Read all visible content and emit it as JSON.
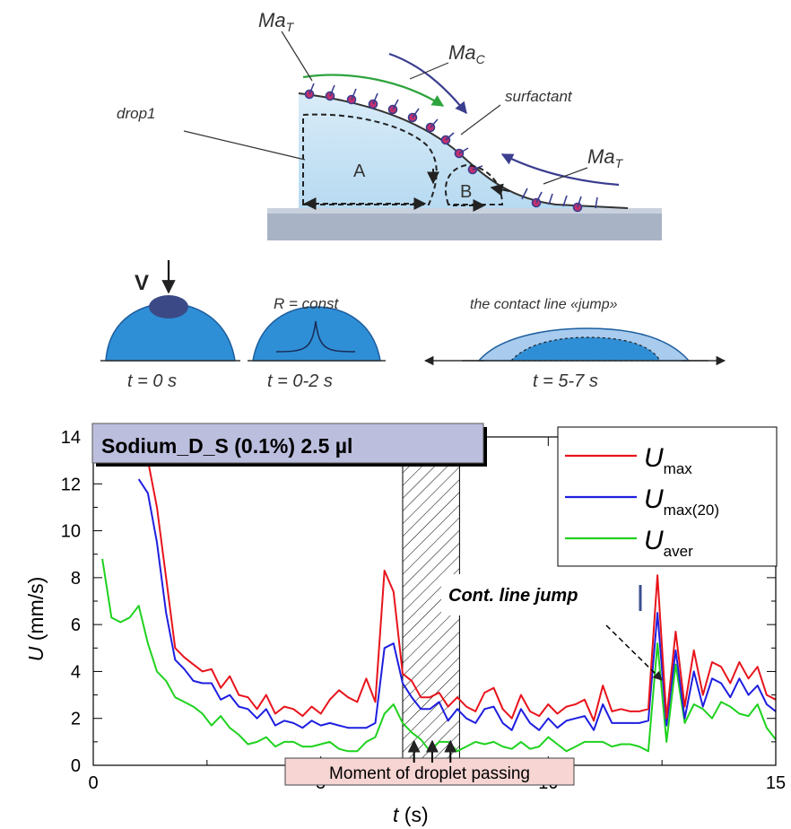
{
  "diagram": {
    "labels": {
      "ma_t_top": "Ma",
      "ma_t_top_sub": "T",
      "ma_c": "Ma",
      "ma_c_sub": "C",
      "ma_t_right": "Ma",
      "ma_t_right_sub": "T",
      "surfactant": "surfactant",
      "drop1": "drop1",
      "region_a": "A",
      "region_b": "B"
    },
    "stages": {
      "v_label": "V",
      "r_const": "R = const",
      "jump_title": "the contact line «jump»",
      "t0": "t = 0 s",
      "t02": "t = 0-2 s",
      "t57": "t = 5-7 s"
    }
  },
  "chart_data": {
    "type": "line",
    "title": "Sodium_D_S (0.1%) 2.5 µl",
    "xlabel": "t (s)",
    "ylabel": "U (mm/s)",
    "xlim": [
      0,
      15
    ],
    "ylim": [
      0,
      14
    ],
    "xticks": [
      0,
      5,
      10,
      15
    ],
    "yticks": [
      0,
      2,
      4,
      6,
      8,
      10,
      12,
      14
    ],
    "legend_position": "top-right",
    "annotations": {
      "jump": "Cont. line  jump",
      "passing": "Moment of droplet passing"
    },
    "hatched_interval": [
      6.8,
      8.05
    ],
    "series": [
      {
        "name": "U_max",
        "legend_main": "U",
        "legend_sub": "max",
        "color": "#e8141c",
        "x": [
          1.0,
          1.2,
          1.4,
          1.6,
          1.8,
          2.0,
          2.2,
          2.4,
          2.6,
          2.8,
          3.0,
          3.2,
          3.4,
          3.6,
          3.8,
          4.0,
          4.2,
          4.4,
          4.6,
          4.8,
          5.0,
          5.2,
          5.4,
          5.6,
          5.8,
          6.0,
          6.2,
          6.4,
          6.6,
          6.8,
          7.0,
          7.2,
          7.4,
          7.6,
          7.8,
          8.0,
          8.2,
          8.4,
          8.6,
          8.8,
          9.0,
          9.2,
          9.4,
          9.6,
          9.8,
          10.0,
          10.2,
          10.4,
          10.6,
          10.8,
          11.0,
          11.2,
          11.4,
          11.6,
          11.8,
          12.0,
          12.2,
          12.4,
          12.6,
          12.8,
          13.0,
          13.2,
          13.4,
          13.6,
          13.8,
          14.0,
          14.2,
          14.4,
          14.6,
          14.8,
          15.0
        ],
        "y": [
          14.5,
          13.0,
          11.0,
          8.0,
          5.0,
          4.6,
          4.3,
          4.0,
          4.1,
          3.3,
          3.8,
          3.0,
          2.9,
          2.4,
          3.0,
          2.2,
          2.5,
          2.4,
          2.1,
          2.5,
          2.2,
          2.8,
          3.2,
          2.9,
          2.7,
          3.7,
          2.7,
          8.3,
          7.4,
          3.9,
          3.6,
          2.9,
          2.9,
          3.1,
          2.5,
          2.9,
          2.5,
          2.3,
          3.1,
          3.3,
          2.4,
          2.0,
          3.0,
          2.3,
          2.1,
          2.6,
          2.2,
          2.5,
          2.6,
          2.8,
          1.9,
          3.4,
          2.3,
          2.4,
          2.3,
          2.3,
          2.4,
          8.1,
          2.0,
          5.7,
          2.5,
          4.9,
          3.0,
          4.4,
          4.2,
          3.5,
          4.4,
          3.7,
          4.2,
          3.0,
          2.8
        ]
      },
      {
        "name": "U_max(20)",
        "legend_main": "U",
        "legend_sub": "max(20)",
        "color": "#1f1fe0",
        "x": [
          1.0,
          1.2,
          1.4,
          1.6,
          1.8,
          2.0,
          2.2,
          2.4,
          2.6,
          2.8,
          3.0,
          3.2,
          3.4,
          3.6,
          3.8,
          4.0,
          4.2,
          4.4,
          4.6,
          4.8,
          5.0,
          5.2,
          5.4,
          5.6,
          5.8,
          6.0,
          6.2,
          6.4,
          6.6,
          6.8,
          7.0,
          7.2,
          7.4,
          7.6,
          7.8,
          8.0,
          8.2,
          8.4,
          8.6,
          8.8,
          9.0,
          9.2,
          9.4,
          9.6,
          9.8,
          10.0,
          10.2,
          10.4,
          10.6,
          10.8,
          11.0,
          11.2,
          11.4,
          11.6,
          11.8,
          12.0,
          12.2,
          12.4,
          12.6,
          12.8,
          13.0,
          13.2,
          13.4,
          13.6,
          13.8,
          14.0,
          14.2,
          14.4,
          14.6,
          14.8,
          15.0
        ],
        "y": [
          12.2,
          11.6,
          9.5,
          6.5,
          4.5,
          4.1,
          3.6,
          3.5,
          3.5,
          2.8,
          3.0,
          2.5,
          2.4,
          2.0,
          2.4,
          1.7,
          1.9,
          1.8,
          1.6,
          1.9,
          1.7,
          1.8,
          1.7,
          1.6,
          1.6,
          1.6,
          1.8,
          5.0,
          5.2,
          3.5,
          2.9,
          2.4,
          2.4,
          2.7,
          1.9,
          2.4,
          2.0,
          1.8,
          2.4,
          2.5,
          1.8,
          1.5,
          2.4,
          1.8,
          1.5,
          2.0,
          1.6,
          1.9,
          2.0,
          2.1,
          1.5,
          2.6,
          1.8,
          1.8,
          1.8,
          1.8,
          1.9,
          6.5,
          1.7,
          4.9,
          2.0,
          4.0,
          2.5,
          3.7,
          3.5,
          2.9,
          3.7,
          3.0,
          3.4,
          2.6,
          2.3
        ]
      },
      {
        "name": "U_aver",
        "legend_main": "U",
        "legend_sub": "aver",
        "color": "#1fd21f",
        "x": [
          0.2,
          0.4,
          0.6,
          0.8,
          1.0,
          1.2,
          1.4,
          1.6,
          1.8,
          2.0,
          2.2,
          2.4,
          2.6,
          2.8,
          3.0,
          3.2,
          3.4,
          3.6,
          3.8,
          4.0,
          4.2,
          4.4,
          4.6,
          4.8,
          5.0,
          5.2,
          5.4,
          5.6,
          5.8,
          6.0,
          6.2,
          6.4,
          6.6,
          6.8,
          7.0,
          7.2,
          7.4,
          7.6,
          7.8,
          8.0,
          8.2,
          8.4,
          8.6,
          8.8,
          9.0,
          9.2,
          9.4,
          9.6,
          9.8,
          10.0,
          10.2,
          10.4,
          10.6,
          10.8,
          11.0,
          11.2,
          11.4,
          11.6,
          11.8,
          12.0,
          12.2,
          12.4,
          12.6,
          12.8,
          13.0,
          13.2,
          13.4,
          13.6,
          13.8,
          14.0,
          14.2,
          14.4,
          14.6,
          14.8,
          15.0
        ],
        "y": [
          8.8,
          6.3,
          6.1,
          6.3,
          6.8,
          5.2,
          4.0,
          3.6,
          2.9,
          2.7,
          2.5,
          2.2,
          1.7,
          2.1,
          1.6,
          1.3,
          0.9,
          1.0,
          1.2,
          0.8,
          1.0,
          1.0,
          0.8,
          0.8,
          0.9,
          1.0,
          0.7,
          0.6,
          0.6,
          1.0,
          1.2,
          2.2,
          2.6,
          1.8,
          1.4,
          1.1,
          0.6,
          1.0,
          1.0,
          0.6,
          0.8,
          1.0,
          0.9,
          1.0,
          0.8,
          0.7,
          1.0,
          0.7,
          0.8,
          1.2,
          0.9,
          0.6,
          0.8,
          1.0,
          1.0,
          1.0,
          0.8,
          0.9,
          0.9,
          0.8,
          0.6,
          5.2,
          1.0,
          4.3,
          1.8,
          2.6,
          2.4,
          2.0,
          2.7,
          2.5,
          2.2,
          2.1,
          2.6,
          1.6,
          1.1
        ]
      }
    ]
  }
}
